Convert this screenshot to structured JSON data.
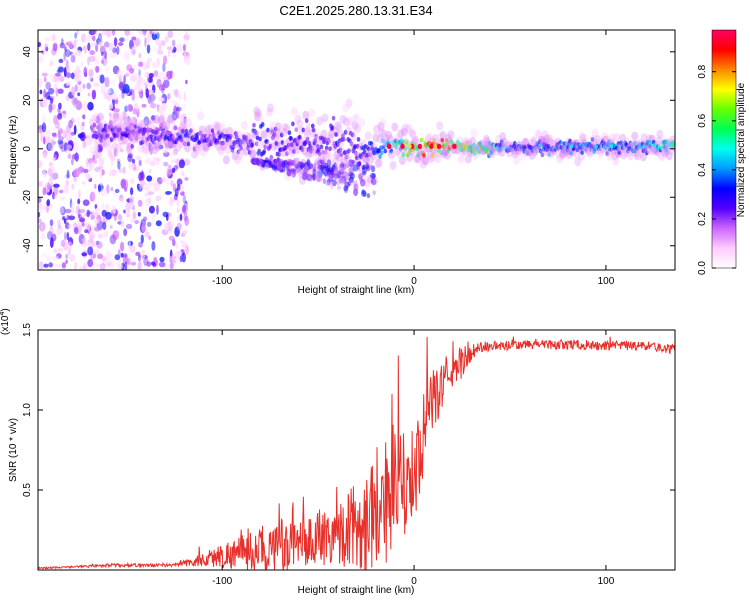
{
  "title": "C2E1.2025.280.13.31.E34",
  "chart_data": [
    {
      "type": "heatmap",
      "title": "C2E1.2025.280.13.31.E34",
      "xlabel": "Height of straight line (km)",
      "ylabel": "Frequency (Hz)",
      "xlim": [
        -196,
        136
      ],
      "ylim": [
        -50,
        49
      ],
      "xticks": [
        -100,
        0,
        100
      ],
      "xtick_labels": [
        "-100",
        "0",
        "100"
      ],
      "yticks": [
        -40,
        -20,
        0,
        20,
        40
      ],
      "ytick_labels": [
        "-40",
        "-20",
        "0",
        "20",
        "40"
      ],
      "colorbar": {
        "label": "Normalized spectral amplitude",
        "range": [
          0,
          0.97
        ],
        "ticks": [
          0.0,
          0.2,
          0.4,
          0.6,
          0.8
        ],
        "tick_labels": [
          "0.0",
          "0.2",
          "0.4",
          "0.6",
          "0.8"
        ],
        "colormap": [
          "#ffffff",
          "#ffccff",
          "#cc66ff",
          "#5500ff",
          "#0000ff",
          "#0099ff",
          "#00ffee",
          "#00ff55",
          "#66ff00",
          "#ffff00",
          "#ff8800",
          "#ff0000",
          "#ff0066"
        ]
      },
      "ridge": {
        "description": "band of high amplitude near 0 Hz",
        "x": [
          -165,
          -140,
          -120,
          -100,
          -80,
          -60,
          -45,
          -30,
          -20,
          -10,
          0,
          20,
          50,
          100,
          136
        ],
        "center_hz": [
          7,
          6,
          5,
          4,
          2,
          3,
          2,
          0,
          0,
          1,
          1,
          1,
          0,
          1,
          1
        ],
        "amplitude": [
          0.3,
          0.3,
          0.35,
          0.35,
          0.35,
          0.3,
          0.3,
          0.35,
          0.4,
          0.6,
          0.9,
          0.9,
          0.45,
          0.45,
          0.6
        ]
      }
    },
    {
      "type": "line",
      "xlabel": "Height of straight line (km)",
      "ylabel": "SNR (10 * v/v)",
      "y_multiplier_label": "(x10",
      "y_multiplier_exp": "4",
      "y_multiplier_close": ")",
      "xlim": [
        -196,
        136
      ],
      "ylim": [
        0,
        1.5
      ],
      "xticks": [
        -100,
        0,
        100
      ],
      "xtick_labels": [
        "-100",
        "0",
        "100"
      ],
      "yticks": [
        0.5,
        1.0,
        1.5
      ],
      "ytick_labels": [
        "0.5",
        "1.0",
        "1.5"
      ],
      "series": [
        {
          "name": "SNR",
          "color": "#e8302a",
          "x": [
            -196,
            -180,
            -160,
            -140,
            -125,
            -115,
            -100,
            -90,
            -80,
            -70,
            -60,
            -50,
            -40,
            -30,
            -25,
            -20,
            -15,
            -10,
            -5,
            0,
            5,
            10,
            15,
            20,
            25,
            30,
            35,
            40,
            50,
            60,
            80,
            100,
            120,
            136
          ],
          "mean": [
            0.012,
            0.018,
            0.03,
            0.03,
            0.03,
            0.05,
            0.09,
            0.11,
            0.12,
            0.13,
            0.15,
            0.2,
            0.23,
            0.28,
            0.3,
            0.42,
            0.45,
            0.47,
            0.52,
            0.6,
            0.85,
            1.05,
            1.17,
            1.25,
            1.3,
            1.36,
            1.39,
            1.4,
            1.4,
            1.41,
            1.41,
            1.4,
            1.4,
            1.38
          ],
          "spread": [
            0.005,
            0.005,
            0.01,
            0.01,
            0.01,
            0.03,
            0.08,
            0.11,
            0.14,
            0.15,
            0.15,
            0.18,
            0.2,
            0.28,
            0.35,
            0.4,
            0.42,
            0.4,
            0.35,
            0.3,
            0.25,
            0.2,
            0.15,
            0.12,
            0.1,
            0.05,
            0.04,
            0.03,
            0.03,
            0.03,
            0.03,
            0.03,
            0.03,
            0.03
          ]
        }
      ]
    }
  ]
}
